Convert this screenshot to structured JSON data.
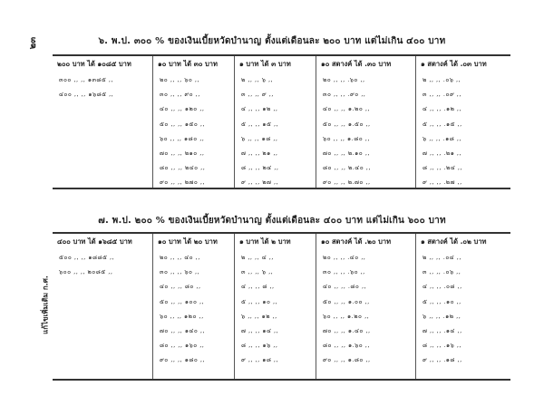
{
  "page_number": "๒๓",
  "side_note": "แก้ไขเพิ่มเติม ก.ศ.",
  "tables": [
    {
      "title": "๖. พ.ป. ๓๐๐ % ของเงินเบี้ยหวัดบำนาญ ตั้งแต่เดือนละ ๒๐๐ บาท แต่ไม่เกิน ๔๐๐ บาท",
      "columns": [
        {
          "header": "๒๐๐ บาท ได้ ๑๐๘๕ บาท",
          "rows": [
            "๓๐๐ ,, ,, ๑๓๘๕ ,,",
            "๔๐๐ ,, ,, ๑๖๘๕ ,,"
          ]
        },
        {
          "header": "๑๐ บาท ได้ ๓๐ บาท",
          "rows": [
            "๒๐ ,, ,, ๖๐ ,,",
            "๓๐ ,, ,, ๙๐ ,,",
            "๔๐ ,, ,, ๑๒๐ ,,",
            "๕๐ ,, ,, ๑๕๐ ,,",
            "๖๐ ,, ,, ๑๘๐ ,,",
            "๗๐ ,, ,, ๒๑๐ ,,",
            "๘๐ ,, ,, ๒๔๐ ,,",
            "๙๐ ,, ,, ๒๗๐ ,,"
          ]
        },
        {
          "header": "๑ บาท ได้ ๓ บาท",
          "rows": [
            "๒ ,, ,, ๖ ,,",
            "๓ ,, ,, ๙ ,,",
            "๔ ,, ,, ๑๒ ,,",
            "๕ ,, ,, ๑๕ ,,",
            "๖ ,, ,, ๑๘ ,,",
            "๗ ,, ,, ๒๑ ,,",
            "๘ ,, ,, ๒๔ ,,",
            "๙ ,, ,, ๒๗ ,,"
          ]
        },
        {
          "header": "๑๐ สตางค์ ได้ .๓๐ บาท",
          "rows": [
            "๒๐ ,, ,, .๖๐ ,,",
            "๓๐ ,, ,, .๙๐ ,,",
            "๔๐ ,, ,, ๑.๒๐ ,,",
            "๕๐ ,, ,, ๑.๕๐ ,,",
            "๖๐ ,, ,, ๑.๘๐ ,,",
            "๗๐ ,, ,, ๒.๑๐ ,,",
            "๘๐ ,, ,, ๒.๔๐ ,,",
            "๙๐ ,, ,, ๒.๗๐ ,,"
          ]
        },
        {
          "header": "๑ สตางค์ ได้ .๐๓ บาท",
          "rows": [
            "๒ ,, ,, .๐๖ ,,",
            "๓ ,, ,, .๐๙ ,,",
            "๔ ,, ,, .๑๒ ,,",
            "๕ ,, ,, .๑๕ ,,",
            "๖ ,, ,, .๑๘ ,,",
            "๗ ,, ,, .๒๑ ,,",
            "๘ ,, ,, .๒๔ ,,",
            "๙ ,, ,, .๒๗ ,,"
          ]
        }
      ]
    },
    {
      "title": "๗. พ.ป. ๒๐๐ % ของเงินเบี้ยหวัดบำนาญ ตั้งแต่เดือนละ ๔๐๐ บาท แต่ไม่เกิน ๖๐๐ บาท",
      "columns": [
        {
          "header": "๔๐๐ บาท ได้ ๑๖๘๕ บาท",
          "rows": [
            "๕๐๐ ,, ,, ๑๘๘๕ ,,",
            "๖๐๐ ,, ,, ๒๐๘๕ ,,"
          ]
        },
        {
          "header": "๑๐ บาท ได้ ๒๐ บาท",
          "rows": [
            "๒๐ ,, ,, ๔๐ ,,",
            "๓๐ ,, ,, ๖๐ ,,",
            "๔๐ ,, ,, ๘๐ ,,",
            "๕๐ ,, ,, ๑๐๐ ,,",
            "๖๐ ,, ,, ๑๒๐ ,,",
            "๗๐ ,, ,, ๑๔๐ ,,",
            "๘๐ ,, ,, ๑๖๐ ,,",
            "๙๐ ,, ,, ๑๘๐ ,,"
          ]
        },
        {
          "header": "๑ บาท ได้ ๒ บาท",
          "rows": [
            "๒ ,, ,, ๔ ,,",
            "๓ ,, ,, ๖ ,,",
            "๔ ,, ,, ๘ ,,",
            "๕ ,, ,, ๑๐ ,,",
            "๖ ,, ,, ๑๒ ,,",
            "๗ ,, ,, ๑๔ ,,",
            "๘ ,, ,, ๑๖ ,,",
            "๙ ,, ,, ๑๘ ,,"
          ]
        },
        {
          "header": "๑๐ สตางค์ ได้ .๒๐ บาท",
          "rows": [
            "๒๐ ,, ,, .๔๐ ,,",
            "๓๐ ,, ,, .๖๐ ,,",
            "๔๐ ,, ,, .๘๐ ,,",
            "๕๐ ,, ,, ๑.๐๐ ,,",
            "๖๐ ,, ,, ๑.๒๐ ,,",
            "๗๐ ,, ,, ๑.๔๐ ,,",
            "๘๐ ,, ,, ๑.๖๐ ,,",
            "๙๐ ,, ,, ๑.๘๐ ,,"
          ]
        },
        {
          "header": "๑ สตางค์ ได้ .๐๒ บาท",
          "rows": [
            "๒ ,, ,, .๐๔ ,,",
            "๓ ,, ,, .๐๖ ,,",
            "๔ ,, ,, .๐๘ ,,",
            "๕ ,, ,, .๑๐ ,,",
            "๖ ,, ,, .๑๒ ,,",
            "๗ ,, ,, .๑๔ ,,",
            "๘ ,, ,, .๑๖ ,,",
            "๙ ,, ,, .๑๘ ,,"
          ]
        }
      ]
    }
  ]
}
